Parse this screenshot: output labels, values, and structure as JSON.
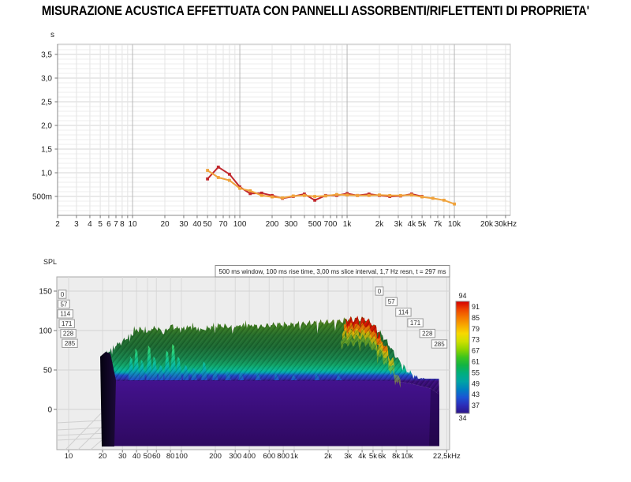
{
  "title": "MISURAZIONE ACUSTICA EFFETTUATA CON PANNELLI ASSORBENTI/RIFLETTENTI DI PROPRIETA'",
  "chart_data": [
    {
      "type": "line",
      "name": "reverberation-time-vs-frequency",
      "y_unit_label": "s",
      "x_axis": "frequency-log-Hz",
      "x_range": [
        2,
        33000
      ],
      "y_range": [
        0.1,
        3.72
      ],
      "grid": true,
      "x_tick_labels": [
        "2",
        "3",
        "4",
        "5",
        "6",
        "7",
        "8",
        "10",
        "20",
        "30",
        "40",
        "50",
        "70",
        "100",
        "200",
        "300",
        "500",
        "700",
        "1k",
        "2k",
        "3k",
        "4k",
        "5k",
        "7k",
        "10k",
        "20k",
        "30kHz"
      ],
      "x_tick_values": [
        2,
        3,
        4,
        5,
        6,
        7,
        8,
        10,
        20,
        30,
        40,
        50,
        70,
        100,
        200,
        300,
        500,
        700,
        1000,
        2000,
        3000,
        4000,
        5000,
        7000,
        10000,
        20000,
        30000
      ],
      "y_tick_labels": [
        "3,5",
        "3,0",
        "2,5",
        "2,0",
        "1,5",
        "1,0",
        "500m"
      ],
      "y_tick_values": [
        3.5,
        3.0,
        2.5,
        2.0,
        1.5,
        1.0,
        0.5
      ],
      "series": [
        {
          "name": "decay-time-red",
          "color": "#c1272d",
          "x": [
            50,
            63,
            80,
            100,
            125,
            160,
            200,
            250,
            315,
            400,
            500,
            630,
            800,
            1000,
            1250,
            1600,
            2000,
            2500,
            3150,
            4000,
            5000
          ],
          "y": [
            0.87,
            1.12,
            0.97,
            0.7,
            0.56,
            0.57,
            0.52,
            0.46,
            0.5,
            0.55,
            0.42,
            0.52,
            0.52,
            0.56,
            0.52,
            0.55,
            0.52,
            0.5,
            0.51,
            0.55,
            0.5
          ]
        },
        {
          "name": "decay-time-orange",
          "color": "#f0a33c",
          "x": [
            50,
            63,
            80,
            100,
            125,
            160,
            200,
            250,
            315,
            400,
            500,
            630,
            800,
            1000,
            1250,
            1600,
            2000,
            2500,
            3150,
            4000,
            5000,
            6300,
            8000,
            10000
          ],
          "y": [
            1.05,
            0.9,
            0.84,
            0.67,
            0.62,
            0.52,
            0.49,
            0.47,
            0.51,
            0.52,
            0.5,
            0.51,
            0.54,
            0.53,
            0.52,
            0.52,
            0.53,
            0.52,
            0.52,
            0.53,
            0.49,
            0.46,
            0.42,
            0.34
          ]
        }
      ]
    },
    {
      "type": "3d-waterfall",
      "name": "spectral-decay-waterfall",
      "y_axis_label": "SPL",
      "header": "500 ms window, 100 ms rise time, 3,00 ms slice interval, 1,7 Hz resn, t = 297 ms",
      "y_tick_labels": [
        "150",
        "100",
        "50",
        "0"
      ],
      "y_tick_values": [
        150,
        100,
        50,
        0
      ],
      "x_tick_labels": [
        "10",
        "20",
        "30",
        "40",
        "50",
        "60",
        "80",
        "100",
        "200",
        "300",
        "400",
        "600",
        "800",
        "1k",
        "2k",
        "3k",
        "4k",
        "5k",
        "6k",
        "8k",
        "10k",
        "22,5kHz"
      ],
      "x_tick_values": [
        10,
        20,
        30,
        40,
        50,
        60,
        80,
        100,
        200,
        300,
        400,
        600,
        800,
        1000,
        2000,
        3000,
        4000,
        5000,
        6000,
        8000,
        10000,
        22500
      ],
      "time_slice_labels_ms": [
        "0",
        "57",
        "114",
        "171",
        "228",
        "285"
      ],
      "legend": {
        "top_label": "94",
        "bottom_label": "34",
        "side_labels": [
          "91",
          "85",
          "79",
          "73",
          "67",
          "61",
          "55",
          "49",
          "43",
          "37"
        ],
        "gradient": [
          "#d40000",
          "#ee4400",
          "#f57800",
          "#f8a800",
          "#f8d800",
          "#cfe000",
          "#8fd400",
          "#3cc41e",
          "#12b444",
          "#00ae7e",
          "#00a4a4",
          "#0080c0",
          "#1c54d4",
          "#2c2cb8",
          "#2c1488"
        ]
      },
      "colors": {
        "floor_block": "#3a0c7c",
        "floor_block_dark": "#2e0960",
        "left_wall": "#0c0518",
        "surface_stops": [
          [
            395,
            "#6e6e1e"
          ],
          [
            403,
            "#5f7a1a"
          ],
          [
            412,
            "#3e7c20"
          ],
          [
            425,
            "#256e2b"
          ],
          [
            440,
            "#1b6a33"
          ],
          [
            455,
            "#15854d"
          ],
          [
            463,
            "#0fa468"
          ],
          [
            469,
            "#06b792"
          ],
          [
            472,
            "#00a8b0"
          ],
          [
            476,
            "#1f48c8"
          ],
          [
            480,
            "#2b2fb0"
          ],
          [
            483,
            "#3a0c7c"
          ],
          [
            505,
            "#2e0960"
          ]
        ],
        "spike_stops": [
          [
            435,
            "#3fe06a"
          ],
          [
            455,
            "#12c98c"
          ],
          [
            468,
            "#00b0b0"
          ],
          [
            483,
            "#2244cc"
          ]
        ]
      },
      "ridge_envelope": {
        "freq": [
          20,
          25,
          30,
          40,
          50,
          60,
          70,
          80,
          100,
          125,
          150,
          200,
          300,
          400,
          500,
          700,
          1000,
          1500,
          2000,
          2500,
          3000,
          3500,
          4000,
          4500,
          5000,
          6000,
          7000,
          8000,
          10000,
          12000,
          15000,
          18000,
          21000
        ],
        "apparent_spl": [
          67,
          79,
          86,
          100,
          99,
          104,
          97,
          106,
          101,
          104,
          100,
          107,
          104,
          107,
          105,
          108,
          107,
          110,
          111,
          112,
          114,
          115,
          115,
          113,
          107,
          94,
          81,
          67,
          49,
          41,
          33,
          27,
          21
        ]
      },
      "front_spikes": [
        {
          "f": 36,
          "h": 30
        },
        {
          "f": 40,
          "h": 40
        },
        {
          "f": 45,
          "h": 26
        },
        {
          "f": 52,
          "h": 44
        },
        {
          "f": 58,
          "h": 30
        },
        {
          "f": 66,
          "h": 20
        },
        {
          "f": 75,
          "h": 38
        },
        {
          "f": 85,
          "h": 46
        },
        {
          "f": 95,
          "h": 30
        },
        {
          "f": 110,
          "h": 20
        },
        {
          "f": 130,
          "h": 16
        },
        {
          "f": 160,
          "h": 24
        },
        {
          "f": 200,
          "h": 14
        },
        {
          "f": 260,
          "h": 12
        },
        {
          "f": 340,
          "h": 10
        },
        {
          "f": 480,
          "h": 9
        },
        {
          "f": 700,
          "h": 8
        },
        {
          "f": 1000,
          "h": 7
        },
        {
          "f": 1600,
          "h": 8
        },
        {
          "f": 2500,
          "h": 7
        }
      ]
    }
  ]
}
